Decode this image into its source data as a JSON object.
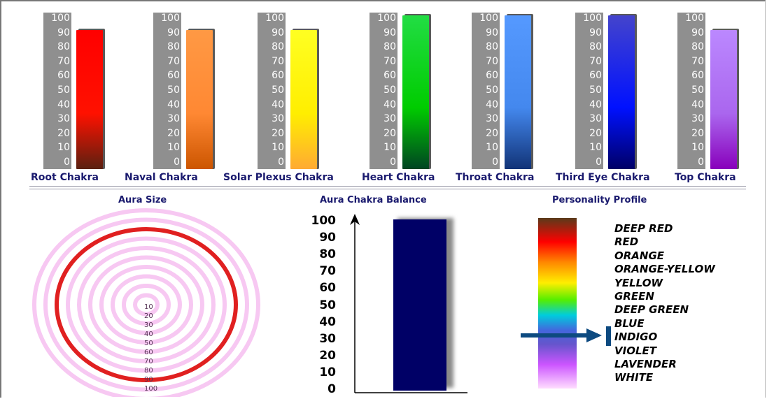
{
  "chart_data": [
    {
      "type": "bar",
      "categories": [
        "Root Chakra",
        "Naval Chakra",
        "Solar Plexus Chakra",
        "Heart Chakra",
        "Throat Chakra",
        "Third Eye Chakra",
        "Top Chakra"
      ],
      "values": [
        90,
        90,
        90,
        100,
        100,
        100,
        90
      ],
      "ylim": [
        0,
        100
      ],
      "yticks": [
        "100",
        "90",
        "80",
        "70",
        "60",
        "50",
        "40",
        "30",
        "20",
        "10",
        "0"
      ],
      "bar_colors": [
        [
          "#ff0000",
          "#ff1100",
          "#5a2010"
        ],
        [
          "#ff9944",
          "#ff8833",
          "#cc5500"
        ],
        [
          "#ffff22",
          "#ffee00",
          "#ffaa33"
        ],
        [
          "#22dd44",
          "#00cc00",
          "#004422"
        ],
        [
          "#5599ff",
          "#4488ee",
          "#113377"
        ],
        [
          "#4444cc",
          "#0011ff",
          "#000066"
        ],
        [
          "#bb88ff",
          "#aa66ee",
          "#8800bb"
        ]
      ]
    },
    {
      "type": "area",
      "title": "Aura Size",
      "ring_labels": [
        "10",
        "20",
        "30",
        "40",
        "50",
        "60",
        "70",
        "80",
        "90",
        "100"
      ],
      "highlighted_ring": 80
    },
    {
      "type": "bar",
      "title": "Aura Chakra Balance",
      "categories": [
        ""
      ],
      "values": [
        100
      ],
      "ylim": [
        0,
        100
      ],
      "yticks": [
        "100",
        "90",
        "80",
        "70",
        "60",
        "50",
        "40",
        "30",
        "20",
        "10",
        "0"
      ],
      "bar_color": "#000066"
    },
    {
      "type": "table",
      "title": "Personality Profile",
      "colors": [
        "DEEP RED",
        "RED",
        "ORANGE",
        "ORANGE-YELLOW",
        "YELLOW",
        "GREEN",
        "DEEP GREEN",
        "BLUE",
        "INDIGO",
        "VIOLET",
        "LAVENDER",
        "WHITE"
      ],
      "selected": "INDIGO",
      "arrow_color": "#0d4a80"
    }
  ],
  "colors": {
    "label_text": "#1a1a6e",
    "scale_bg": "#8f8f8f",
    "ring_pink": "#f7c8f2",
    "ring_red": "#e02020"
  }
}
